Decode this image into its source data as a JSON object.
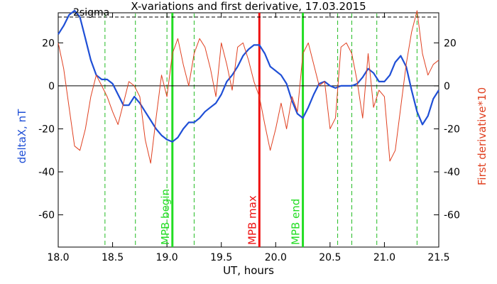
{
  "chart_data": {
    "type": "line",
    "title": "X-variations and first derivative, 17.03.2015",
    "xlabel": "UT, hours",
    "ylabel_left": "deltaX, nT",
    "ylabel_right": "First derivative*10",
    "xlim": [
      18.0,
      21.5
    ],
    "ylim": [
      -75,
      34
    ],
    "x_ticks": [
      18.0,
      18.5,
      19.0,
      19.5,
      20.0,
      20.5,
      21.0,
      21.5
    ],
    "x_tick_labels": [
      "18.0",
      "18.5",
      "19.0",
      "19.5",
      "20.0",
      "20.5",
      "21.0",
      "21.5"
    ],
    "y_ticks": [
      20,
      0,
      -20,
      -40,
      -60
    ],
    "y_tick_labels": [
      "20",
      "0",
      "-20",
      "-40",
      "-60"
    ],
    "zero_line": 0,
    "sigma_label": "2sigma",
    "sigma_level": 32,
    "colors": {
      "deltaX": "#1f4fd6",
      "derivative": "#e04020",
      "mpb_boundary": "#22dd22",
      "mpb_max": "#ee1111",
      "dashed": "#22bb22",
      "axis": "#000000"
    },
    "vertical_markers": [
      {
        "label": "MPB begin",
        "x": 19.05,
        "color": "#22dd22"
      },
      {
        "label": "MPB max",
        "x": 19.85,
        "color": "#ee1111"
      },
      {
        "label": "MPB end",
        "x": 20.25,
        "color": "#22dd22"
      }
    ],
    "dashed_lines_x": [
      18.43,
      18.71,
      19.0,
      19.25,
      20.57,
      20.7,
      20.93,
      21.3
    ],
    "series": [
      {
        "name": "deltaX",
        "axis": "left",
        "x": [
          18.0,
          18.05,
          18.1,
          18.15,
          18.2,
          18.25,
          18.3,
          18.35,
          18.4,
          18.45,
          18.5,
          18.55,
          18.6,
          18.65,
          18.7,
          18.75,
          18.8,
          18.85,
          18.9,
          18.95,
          19.0,
          19.05,
          19.1,
          19.15,
          19.2,
          19.25,
          19.3,
          19.35,
          19.4,
          19.45,
          19.5,
          19.55,
          19.6,
          19.65,
          19.7,
          19.75,
          19.8,
          19.85,
          19.9,
          19.95,
          20.0,
          20.05,
          20.1,
          20.15,
          20.2,
          20.25,
          20.3,
          20.35,
          20.4,
          20.45,
          20.5,
          20.55,
          20.6,
          20.65,
          20.7,
          20.75,
          20.8,
          20.85,
          20.9,
          20.95,
          21.0,
          21.05,
          21.1,
          21.15,
          21.2,
          21.25,
          21.3,
          21.35,
          21.4,
          21.45,
          21.5
        ],
        "y": [
          24,
          28,
          33,
          35,
          32,
          22,
          12,
          5,
          3,
          3,
          1,
          -4,
          -9,
          -9,
          -5,
          -8,
          -12,
          -16,
          -20,
          -23,
          -25,
          -26,
          -24,
          -20,
          -17,
          -17,
          -15,
          -12,
          -10,
          -8,
          -4,
          2,
          5,
          9,
          14,
          17,
          19,
          19,
          15,
          9,
          7,
          5,
          1,
          -7,
          -13,
          -15,
          -10,
          -4,
          1,
          2,
          0,
          -1,
          0,
          0,
          0,
          1,
          4,
          8,
          6,
          2,
          2,
          5,
          11,
          14,
          9,
          -2,
          -12,
          -18,
          -14,
          -6,
          -2
        ]
      },
      {
        "name": "First derivative*10",
        "axis": "right",
        "x": [
          18.0,
          18.05,
          18.1,
          18.15,
          18.2,
          18.25,
          18.3,
          18.35,
          18.4,
          18.45,
          18.5,
          18.55,
          18.6,
          18.65,
          18.7,
          18.75,
          18.8,
          18.85,
          18.9,
          18.95,
          19.0,
          19.05,
          19.1,
          19.15,
          19.2,
          19.25,
          19.3,
          19.35,
          19.4,
          19.45,
          19.5,
          19.55,
          19.6,
          19.65,
          19.7,
          19.75,
          19.8,
          19.85,
          19.9,
          19.95,
          20.0,
          20.05,
          20.1,
          20.15,
          20.2,
          20.25,
          20.3,
          20.35,
          20.4,
          20.45,
          20.5,
          20.55,
          20.6,
          20.65,
          20.7,
          20.75,
          20.8,
          20.85,
          20.9,
          20.95,
          21.0,
          21.05,
          21.1,
          21.15,
          21.2,
          21.25,
          21.3,
          21.35,
          21.4,
          21.45,
          21.5
        ],
        "y": [
          20,
          8,
          -10,
          -28,
          -30,
          -20,
          -5,
          5,
          0,
          -5,
          -12,
          -18,
          -8,
          2,
          0,
          -5,
          -25,
          -36,
          -15,
          5,
          -5,
          15,
          22,
          10,
          0,
          15,
          22,
          18,
          8,
          -5,
          20,
          10,
          -2,
          18,
          20,
          12,
          2,
          -5,
          -18,
          -30,
          -20,
          -8,
          -20,
          -5,
          -12,
          15,
          20,
          10,
          0,
          2,
          -20,
          -15,
          18,
          20,
          15,
          2,
          -15,
          15,
          -10,
          -2,
          -5,
          -35,
          -30,
          -10,
          10,
          25,
          35,
          15,
          5,
          10,
          12
        ]
      }
    ]
  }
}
